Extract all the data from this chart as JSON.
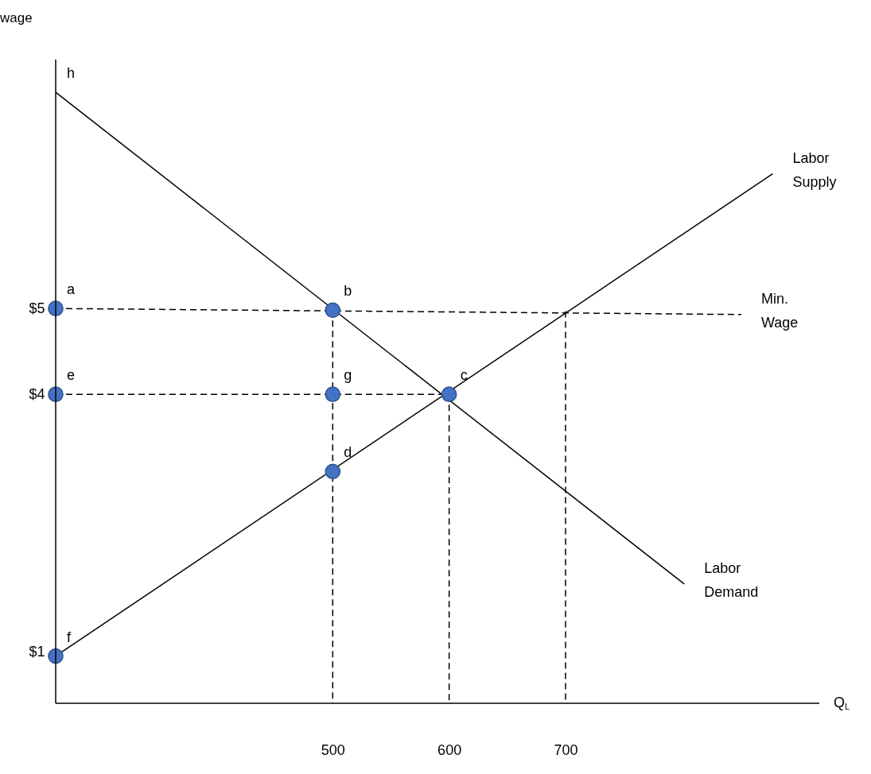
{
  "chart_data": {
    "type": "line",
    "xlabel": "Q$_{L}$",
    "ylabel": "wage",
    "xlim": [
      262,
      918
    ],
    "ylim": [
      0.4,
      7.9
    ],
    "xticks": [
      500,
      600,
      700
    ],
    "yticks": [
      {
        "value": 1,
        "label": "$1"
      },
      {
        "value": 4,
        "label": "$4"
      },
      {
        "value": 5,
        "label": "$5"
      }
    ],
    "grid": false,
    "series": [
      {
        "name": "Labor Supply",
        "type": "line",
        "line_style": "solid",
        "color": "#000000",
        "x": [
          262,
          878
        ],
        "values": [
          0.95,
          6.57
        ]
      },
      {
        "name": "Labor Demand",
        "type": "line",
        "line_style": "solid",
        "color": "#000000",
        "x": [
          262,
          802
        ],
        "values": [
          7.52,
          1.79
        ]
      },
      {
        "name": "Min. Wage",
        "type": "line",
        "line_style": "dashed",
        "color": "#000000",
        "x": [
          262,
          851
        ],
        "values": [
          5,
          4.93
        ]
      },
      {
        "type": "line",
        "line_style": "dashed",
        "color": "#000000",
        "x": [
          262,
          600
        ],
        "values": [
          4,
          4
        ]
      },
      {
        "type": "line",
        "line_style": "dashed",
        "color": "#000000",
        "x": [
          500,
          500
        ],
        "values": [
          4.98,
          0.4
        ]
      },
      {
        "type": "line",
        "line_style": "dashed",
        "color": "#000000",
        "x": [
          600,
          600
        ],
        "values": [
          4,
          0.4
        ]
      },
      {
        "type": "line",
        "line_style": "dashed",
        "color": "#000000",
        "x": [
          700,
          700
        ],
        "values": [
          4.97,
          0.4
        ]
      },
      {
        "type": "scatter",
        "marker": "circle",
        "color": "#4472c4",
        "x": [
          262,
          500,
          262,
          500,
          600,
          500,
          262
        ],
        "values": [
          5,
          4.98,
          4,
          4,
          4,
          3.1,
          0.95
        ]
      }
    ],
    "annotations": [
      {
        "text": "h",
        "x": 262,
        "y": 7.52
      },
      {
        "text": "a",
        "x": 262,
        "y": 5
      },
      {
        "text": "b",
        "x": 500,
        "y": 4.98
      },
      {
        "text": "e",
        "x": 262,
        "y": 4
      },
      {
        "text": "g",
        "x": 500,
        "y": 4
      },
      {
        "text": "c",
        "x": 600,
        "y": 4
      },
      {
        "text": "d",
        "x": 500,
        "y": 3.1
      },
      {
        "text": "f",
        "x": 262,
        "y": 0.95
      }
    ]
  }
}
